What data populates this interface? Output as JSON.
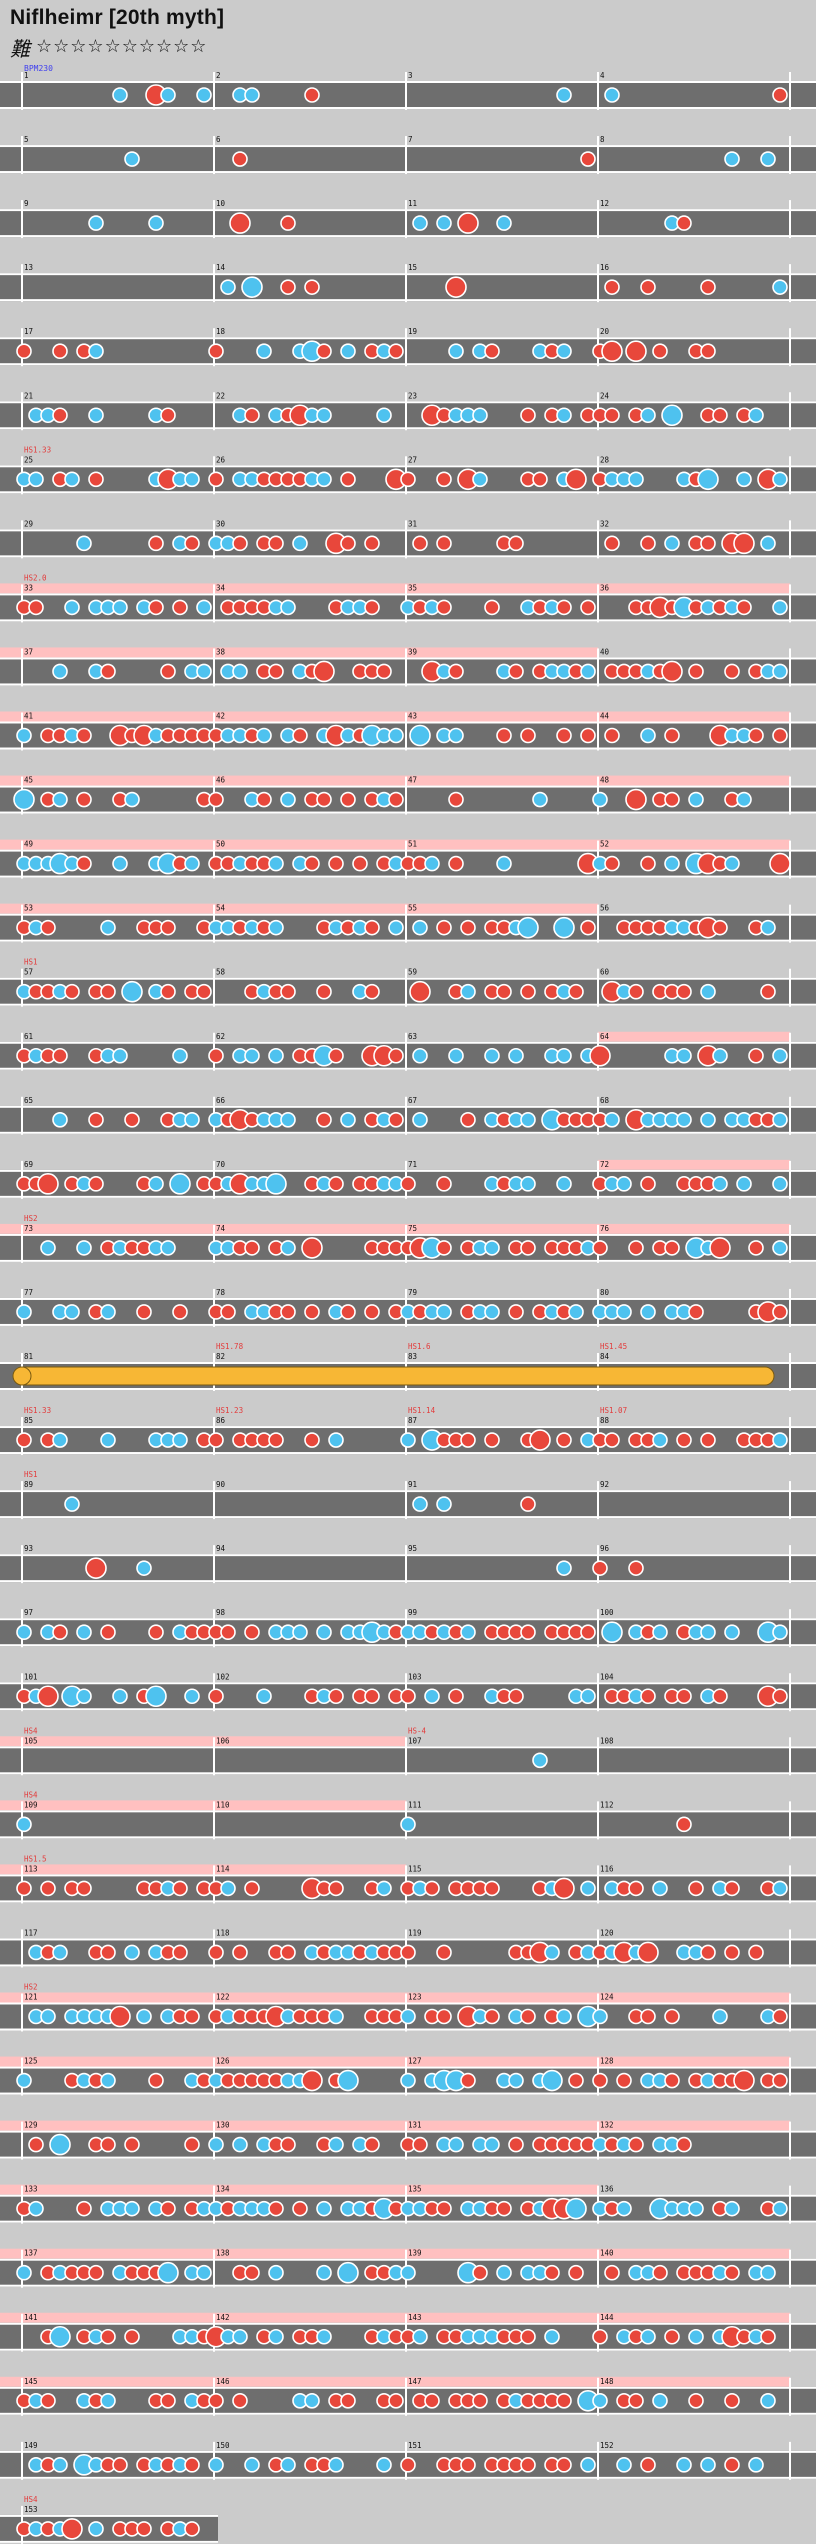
{
  "song": {
    "title": "Niflheimr [20th myth]",
    "difficulty_label": "難",
    "stars_total": 10,
    "stars_filled": 0,
    "star_empty_glyph": "☆",
    "star_filled_glyph": "★"
  },
  "colors": {
    "background": "#cbcbcb",
    "lane": "#6e6e6e",
    "lane_edge": "#ffffff",
    "barline": "#ffffff",
    "gogo": "#ffc0c0",
    "don": "#e8473b",
    "ka": "#4ec2ef",
    "roll": "#f7b735",
    "label": "#e33b3b",
    "bpm_label": "#4040ee",
    "measure_number": "#111111"
  },
  "chart_data": {
    "type": "taiko-chart",
    "measures_per_row": 4,
    "bpm_annotation": "BPM230",
    "rows": [
      {
        "measures": [
          "1",
          "2",
          "3",
          "4"
        ],
        "gogo": [],
        "tag": ""
      },
      {
        "measures": [
          "5",
          "6",
          "7",
          "8"
        ],
        "gogo": [],
        "tag": ""
      },
      {
        "measures": [
          "9",
          "10",
          "11",
          "12"
        ],
        "gogo": [],
        "tag": ""
      },
      {
        "measures": [
          "13",
          "14",
          "15",
          "16"
        ],
        "gogo": [],
        "tag": ""
      },
      {
        "measures": [
          "17",
          "18",
          "19",
          "20"
        ],
        "gogo": [],
        "tag": ""
      },
      {
        "measures": [
          "21",
          "22",
          "23",
          "24"
        ],
        "gogo": [],
        "tag": ""
      },
      {
        "measures": [
          "25",
          "26",
          "27",
          "28"
        ],
        "gogo": [],
        "tag": "HS1.33"
      },
      {
        "measures": [
          "29",
          "30",
          "31",
          "32"
        ],
        "gogo": [],
        "tag": ""
      },
      {
        "measures": [
          "33",
          "34",
          "35",
          "36"
        ],
        "gogo": [
          0,
          1,
          2,
          3
        ],
        "tag": "HS2.0"
      },
      {
        "measures": [
          "37",
          "38",
          "39",
          "40"
        ],
        "gogo": [
          0,
          1,
          2
        ],
        "tag": ""
      },
      {
        "measures": [
          "41",
          "42",
          "43",
          "44"
        ],
        "gogo": [
          0,
          1,
          2,
          3
        ],
        "tag": ""
      },
      {
        "measures": [
          "45",
          "46",
          "47",
          "48"
        ],
        "gogo": [
          0,
          1,
          2,
          3
        ],
        "tag": ""
      },
      {
        "measures": [
          "49",
          "50",
          "51",
          "52"
        ],
        "gogo": [
          0,
          1,
          2,
          3
        ],
        "tag": ""
      },
      {
        "measures": [
          "53",
          "54",
          "55",
          "56"
        ],
        "gogo": [
          0,
          1,
          2
        ],
        "tag": ""
      },
      {
        "measures": [
          "57",
          "58",
          "59",
          "60"
        ],
        "gogo": [],
        "tag": "HS1"
      },
      {
        "measures": [
          "61",
          "62",
          "63",
          "64"
        ],
        "gogo": [
          3
        ],
        "tag": ""
      },
      {
        "measures": [
          "65",
          "66",
          "67",
          "68"
        ],
        "gogo": [],
        "tag": ""
      },
      {
        "measures": [
          "69",
          "70",
          "71",
          "72"
        ],
        "gogo": [
          3
        ],
        "tag": ""
      },
      {
        "measures": [
          "73",
          "74",
          "75",
          "76"
        ],
        "gogo": [
          0,
          1,
          2,
          3
        ],
        "tag": "HS2"
      },
      {
        "measures": [
          "77",
          "78",
          "79",
          "80"
        ],
        "gogo": [],
        "tag": ""
      },
      {
        "measures": [
          "81",
          "82",
          "83",
          "84"
        ],
        "gogo": [],
        "tag": "",
        "roll": true,
        "mtags": [
          "",
          "HS1.78",
          "HS1.6",
          "HS1.45"
        ]
      },
      {
        "measures": [
          "85",
          "86",
          "87",
          "88"
        ],
        "gogo": [],
        "tag": "",
        "mtags": [
          "HS1.33",
          "HS1.23",
          "HS1.14",
          "HS1.07"
        ]
      },
      {
        "measures": [
          "89",
          "90",
          "91",
          "92"
        ],
        "gogo": [],
        "tag": "HS1"
      },
      {
        "measures": [
          "93",
          "94",
          "95",
          "96"
        ],
        "gogo": [],
        "tag": ""
      },
      {
        "measures": [
          "97",
          "98",
          "99",
          "100"
        ],
        "gogo": [],
        "tag": ""
      },
      {
        "measures": [
          "101",
          "102",
          "103",
          "104"
        ],
        "gogo": [],
        "tag": ""
      },
      {
        "measures": [
          "105",
          "106",
          "107",
          "108"
        ],
        "gogo": [
          0,
          1
        ],
        "tag": "HS4",
        "mtags": [
          "",
          "",
          "HS-4",
          ""
        ]
      },
      {
        "measures": [
          "109",
          "110",
          "111",
          "112"
        ],
        "gogo": [
          0,
          1
        ],
        "tag": "HS4"
      },
      {
        "measures": [
          "113",
          "114",
          "115",
          "116"
        ],
        "gogo": [
          0,
          1
        ],
        "tag": "HS1.5"
      },
      {
        "measures": [
          "117",
          "118",
          "119",
          "120"
        ],
        "gogo": [],
        "tag": ""
      },
      {
        "measures": [
          "121",
          "122",
          "123",
          "124"
        ],
        "gogo": [
          0,
          1,
          2,
          3
        ],
        "tag": "HS2"
      },
      {
        "measures": [
          "125",
          "126",
          "127",
          "128"
        ],
        "gogo": [
          0,
          1,
          2,
          3
        ],
        "tag": ""
      },
      {
        "measures": [
          "129",
          "130",
          "131",
          "132"
        ],
        "gogo": [
          0,
          1,
          2,
          3
        ],
        "tag": ""
      },
      {
        "measures": [
          "133",
          "134",
          "135",
          "136"
        ],
        "gogo": [
          0,
          1,
          2
        ],
        "tag": ""
      },
      {
        "measures": [
          "137",
          "138",
          "139",
          "140"
        ],
        "gogo": [
          0,
          1,
          2,
          3
        ],
        "tag": ""
      },
      {
        "measures": [
          "141",
          "142",
          "143",
          "144"
        ],
        "gogo": [
          0,
          1,
          2,
          3
        ],
        "tag": ""
      },
      {
        "measures": [
          "145",
          "146",
          "147",
          "148"
        ],
        "gogo": [
          0,
          1,
          2,
          3
        ],
        "tag": ""
      },
      {
        "measures": [
          "149",
          "150",
          "151",
          "152"
        ],
        "gogo": [],
        "tag": ""
      },
      {
        "measures": [
          "153"
        ],
        "gogo": [],
        "tag": "HS4"
      }
    ]
  }
}
